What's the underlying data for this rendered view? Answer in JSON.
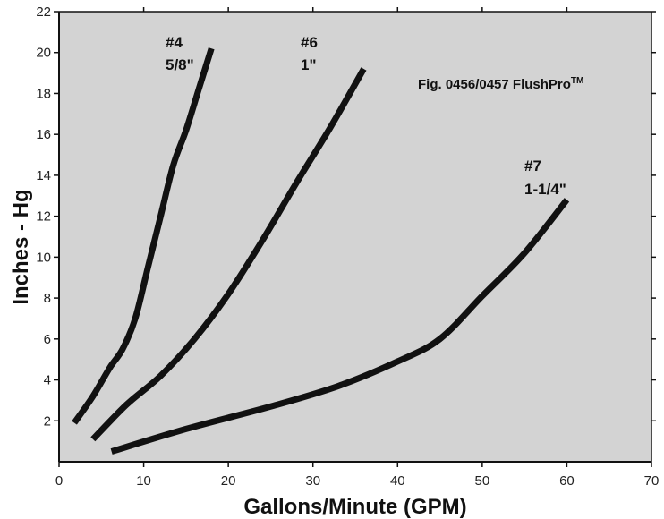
{
  "chart_data": {
    "type": "line",
    "title": "",
    "annotation_main": "Fig. 0456/0457 FlushPro",
    "annotation_tm": "TM",
    "xlabel": "Gallons/Minute (GPM)",
    "ylabel": "Inches - Hg",
    "xlim": [
      0,
      70
    ],
    "ylim": [
      0,
      22
    ],
    "xticks": [
      0,
      10,
      20,
      30,
      40,
      50,
      60,
      70
    ],
    "yticks": [
      2,
      4,
      6,
      8,
      10,
      12,
      14,
      16,
      18,
      20,
      22
    ],
    "grid": false,
    "legend": "none",
    "colors": {
      "background": "#d3d3d3",
      "line": "#111111"
    },
    "series": [
      {
        "name": "#4",
        "label_line1": "#4",
        "label_line2": "5/8\"",
        "x": [
          1.8,
          4,
          6,
          7.5,
          9,
          10.5,
          12,
          13.5,
          15,
          16.5,
          18
        ],
        "y": [
          1.9,
          3.2,
          4.6,
          5.5,
          7,
          9.5,
          12,
          14.5,
          16.2,
          18.2,
          20.2
        ]
      },
      {
        "name": "#6",
        "label_line1": "#6",
        "label_line2": "1\"",
        "x": [
          4,
          8,
          12,
          16,
          20,
          24,
          28,
          32,
          36
        ],
        "y": [
          1.1,
          2.8,
          4.2,
          6,
          8.2,
          10.8,
          13.6,
          16.3,
          19.2
        ]
      },
      {
        "name": "#7",
        "label_line1": "#7",
        "label_line2": "1-1/4\"",
        "x": [
          6.2,
          15,
          25,
          33,
          40,
          45,
          50,
          55,
          60
        ],
        "y": [
          0.5,
          1.6,
          2.7,
          3.7,
          4.9,
          6,
          8.1,
          10.2,
          12.8
        ]
      }
    ]
  }
}
